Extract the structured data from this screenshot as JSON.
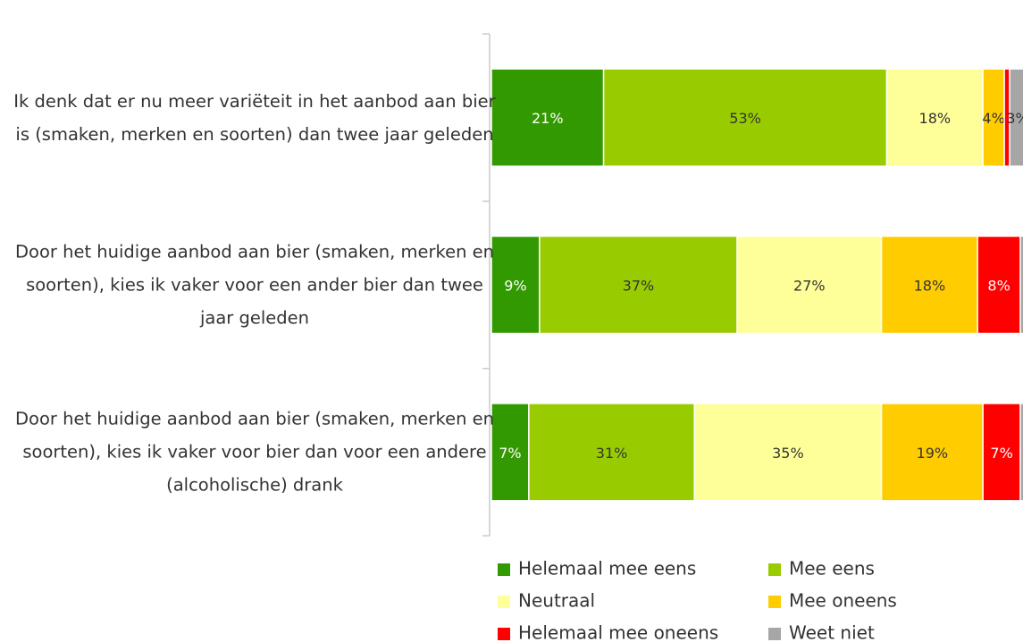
{
  "chart_data": {
    "type": "stacked-bar-horizontal",
    "categories": [
      "Ik denk dat er nu meer variëteit in het aanbod aan bier is (smaken, merken en soorten) dan twee jaar geleden",
      "Door het huidige aanbod aan bier (smaken, merken en soorten), kies ik vaker voor een ander bier dan twee jaar geleden",
      "Door het huidige aanbod aan bier (smaken, merken en soorten), kies ik vaker voor bier dan voor een andere (alcoholische) drank"
    ],
    "xlim": [
      0,
      100
    ],
    "series": [
      {
        "name": "Helemaal mee eens",
        "color": "#339900",
        "label_color": "#ffffff",
        "values": [
          21,
          9,
          7
        ],
        "value_labels": [
          "21%",
          "9%",
          "7%"
        ]
      },
      {
        "name": "Mee eens",
        "color": "#99cc00",
        "label_color": "#333333",
        "values": [
          53,
          37,
          31
        ],
        "value_labels": [
          "53%",
          "37%",
          "31%"
        ]
      },
      {
        "name": "Neutraal",
        "color": "#ffff99",
        "label_color": "#333333",
        "values": [
          18,
          27,
          35
        ],
        "value_labels": [
          "18%",
          "27%",
          "35%"
        ]
      },
      {
        "name": "Mee oneens",
        "color": "#ffcc00",
        "label_color": "#333333",
        "values": [
          4,
          18,
          19
        ],
        "value_labels": [
          "4%",
          "18%",
          "19%"
        ]
      },
      {
        "name": "Helemaal mee oneens",
        "color": "#ff0000",
        "label_color": "#ffffff",
        "values": [
          1,
          8,
          7
        ],
        "value_labels": [
          null,
          "8%",
          "7%"
        ]
      },
      {
        "name": "Weet niet",
        "color": "#a6a6a6",
        "label_color": "#333333",
        "values": [
          3,
          1,
          1
        ],
        "value_labels": [
          "3%",
          null,
          null
        ]
      }
    ]
  }
}
